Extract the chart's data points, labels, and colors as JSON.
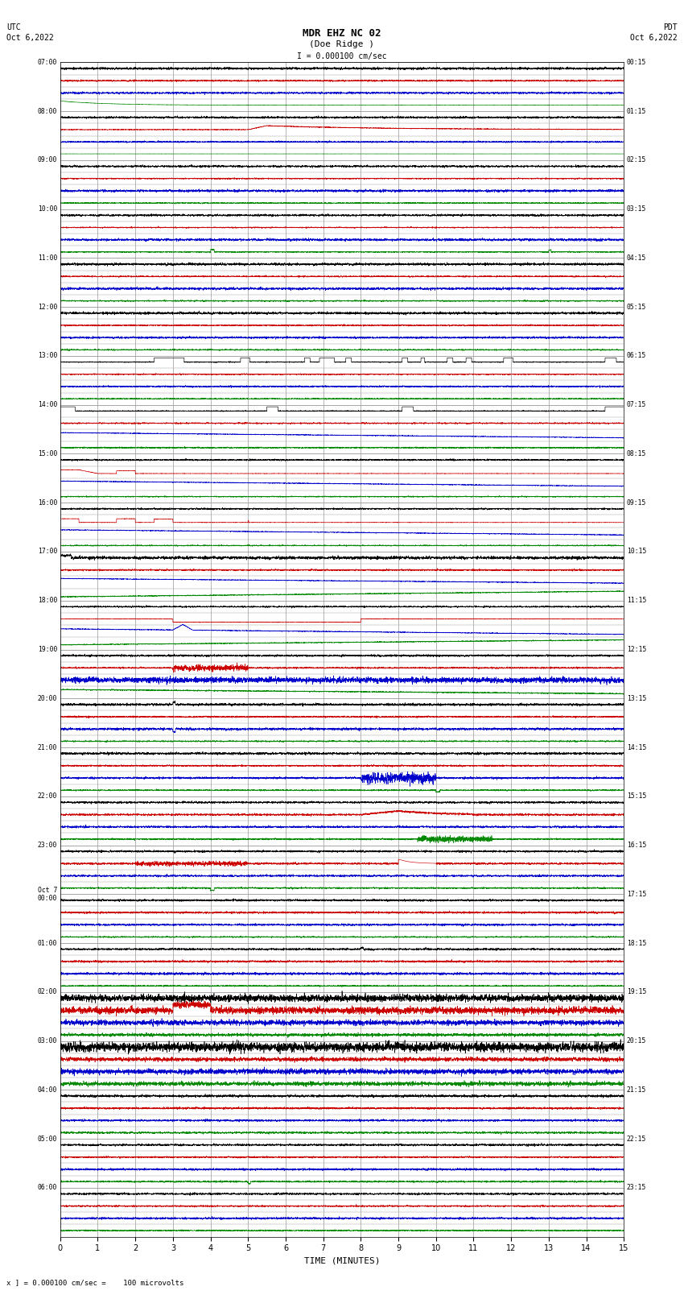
{
  "title_line1": "MDR EHZ NC 02",
  "title_line2": "(Doe Ridge )",
  "scale_text": "I = 0.000100 cm/sec",
  "bottom_note": "x ] = 0.000100 cm/sec =    100 microvolts",
  "xlabel": "TIME (MINUTES)",
  "left_times": [
    "07:00",
    "",
    "",
    "",
    "08:00",
    "",
    "",
    "",
    "09:00",
    "",
    "",
    "",
    "10:00",
    "",
    "",
    "",
    "11:00",
    "",
    "",
    "",
    "12:00",
    "",
    "",
    "",
    "13:00",
    "",
    "",
    "",
    "14:00",
    "",
    "",
    "",
    "15:00",
    "",
    "",
    "",
    "16:00",
    "",
    "",
    "",
    "17:00",
    "",
    "",
    "",
    "18:00",
    "",
    "",
    "",
    "19:00",
    "",
    "",
    "",
    "20:00",
    "",
    "",
    "",
    "21:00",
    "",
    "",
    "",
    "22:00",
    "",
    "",
    "",
    "23:00",
    "",
    "",
    "",
    "Oct 7\n00:00",
    "",
    "",
    "",
    "01:00",
    "",
    "",
    "",
    "02:00",
    "",
    "",
    "",
    "03:00",
    "",
    "",
    "",
    "04:00",
    "",
    "",
    "",
    "05:00",
    "",
    "",
    "",
    "06:00",
    "",
    ""
  ],
  "right_times": [
    "00:15",
    "",
    "",
    "",
    "01:15",
    "",
    "",
    "",
    "02:15",
    "",
    "",
    "",
    "03:15",
    "",
    "",
    "",
    "04:15",
    "",
    "",
    "",
    "05:15",
    "",
    "",
    "",
    "06:15",
    "",
    "",
    "",
    "07:15",
    "",
    "",
    "",
    "08:15",
    "",
    "",
    "",
    "09:15",
    "",
    "",
    "",
    "10:15",
    "",
    "",
    "",
    "11:15",
    "",
    "",
    "",
    "12:15",
    "",
    "",
    "",
    "13:15",
    "",
    "",
    "",
    "14:15",
    "",
    "",
    "",
    "15:15",
    "",
    "",
    "",
    "16:15",
    "",
    "",
    "",
    "17:15",
    "",
    "",
    "",
    "18:15",
    "",
    "",
    "",
    "19:15",
    "",
    "",
    "",
    "20:15",
    "",
    "",
    "",
    "21:15",
    "",
    "",
    "",
    "22:15",
    "",
    "",
    "",
    "23:15",
    "",
    ""
  ],
  "bg_color": "#ffffff",
  "grid_color": "#999999",
  "trace_colors": {
    "black": "#000000",
    "blue": "#0000cc",
    "green": "#008800",
    "red": "#cc0000"
  },
  "hour_labels_left": [
    "07:00",
    "08:00",
    "09:00",
    "10:00",
    "11:00",
    "12:00",
    "13:00",
    "14:00",
    "15:00",
    "16:00",
    "17:00",
    "18:00",
    "19:00",
    "20:00",
    "21:00",
    "22:00",
    "23:00",
    "Oct 7\n00:00",
    "01:00",
    "02:00",
    "03:00",
    "04:00",
    "05:00",
    "06:00"
  ],
  "hour_labels_right": [
    "00:15",
    "01:15",
    "02:15",
    "03:15",
    "04:15",
    "05:15",
    "06:15",
    "07:15",
    "08:15",
    "09:15",
    "10:15",
    "11:15",
    "12:15",
    "13:15",
    "14:15",
    "15:15",
    "16:15",
    "17:15",
    "18:15",
    "19:15",
    "20:15",
    "21:15",
    "22:15",
    "23:15"
  ]
}
